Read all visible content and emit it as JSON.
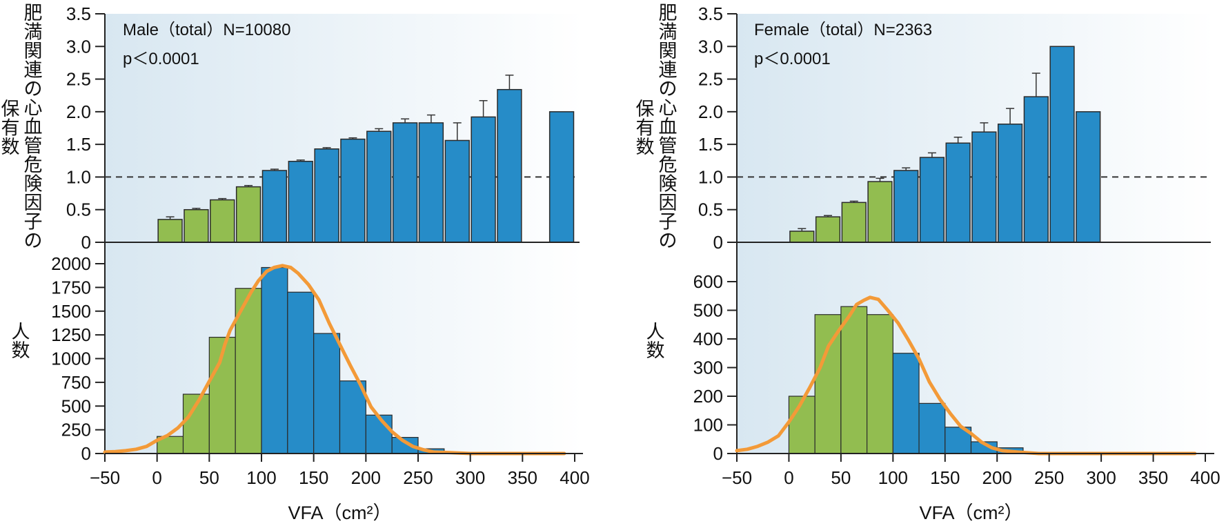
{
  "colors": {
    "green": "#92BD50",
    "blue": "#268CC8",
    "curve": "#F39A38",
    "bg_left": "#D8E7F1",
    "bg_right": "#FFFFFF",
    "axis": "#222222"
  },
  "chart_data": [
    {
      "id": "male",
      "type": "bar",
      "title": "Male（total）N=10080",
      "annotation": "p＜0.0001",
      "top_panel": {
        "type": "bar",
        "ylabel_main": "肥満関連の心血管危険因子の",
        "ylabel_sub": "保有数",
        "ylim": [
          0,
          3.5
        ],
        "yticks": [
          "0",
          "0.5",
          "1.0",
          "1.5",
          "2.0",
          "2.5",
          "3.0",
          "3.5"
        ],
        "reference_line": 1.0,
        "bin_width": 25,
        "bins": [
          {
            "x0": 0,
            "value": 0.35,
            "err": 0.04,
            "group": "green"
          },
          {
            "x0": 25,
            "value": 0.5,
            "err": 0.02,
            "group": "green"
          },
          {
            "x0": 50,
            "value": 0.65,
            "err": 0.02,
            "group": "green"
          },
          {
            "x0": 75,
            "value": 0.85,
            "err": 0.02,
            "group": "green"
          },
          {
            "x0": 100,
            "value": 1.1,
            "err": 0.02,
            "group": "blue"
          },
          {
            "x0": 125,
            "value": 1.24,
            "err": 0.02,
            "group": "blue"
          },
          {
            "x0": 150,
            "value": 1.43,
            "err": 0.02,
            "group": "blue"
          },
          {
            "x0": 175,
            "value": 1.58,
            "err": 0.02,
            "group": "blue"
          },
          {
            "x0": 200,
            "value": 1.7,
            "err": 0.04,
            "group": "blue"
          },
          {
            "x0": 225,
            "value": 1.83,
            "err": 0.06,
            "group": "blue"
          },
          {
            "x0": 250,
            "value": 1.83,
            "err": 0.12,
            "group": "blue"
          },
          {
            "x0": 275,
            "value": 1.56,
            "err": 0.27,
            "group": "blue"
          },
          {
            "x0": 300,
            "value": 1.92,
            "err": 0.25,
            "group": "blue"
          },
          {
            "x0": 325,
            "value": 2.34,
            "err": 0.22,
            "group": "blue"
          },
          {
            "x0": 375,
            "value": 2.0,
            "err": 0,
            "group": "blue"
          }
        ]
      },
      "bottom_panel": {
        "type": "histogram",
        "ylabel": "人数",
        "ylim": [
          0,
          2000
        ],
        "yticks": [
          "0",
          "250",
          "500",
          "750",
          "1000",
          "1250",
          "1500",
          "1750",
          "2000"
        ],
        "bin_width": 25,
        "bins": [
          {
            "x0": 0,
            "count": 180,
            "group": "green"
          },
          {
            "x0": 25,
            "count": 625,
            "group": "green"
          },
          {
            "x0": 50,
            "count": 1225,
            "group": "green"
          },
          {
            "x0": 75,
            "count": 1740,
            "group": "green"
          },
          {
            "x0": 100,
            "count": 1960,
            "group": "blue"
          },
          {
            "x0": 125,
            "count": 1700,
            "group": "blue"
          },
          {
            "x0": 150,
            "count": 1265,
            "group": "blue"
          },
          {
            "x0": 175,
            "count": 765,
            "group": "blue"
          },
          {
            "x0": 200,
            "count": 405,
            "group": "blue"
          },
          {
            "x0": 225,
            "count": 170,
            "group": "blue"
          },
          {
            "x0": 250,
            "count": 50,
            "group": "blue"
          },
          {
            "x0": 275,
            "count": 8,
            "group": "blue"
          }
        ],
        "curve": [
          [
            -50,
            15
          ],
          [
            -40,
            20
          ],
          [
            -30,
            30
          ],
          [
            -20,
            45
          ],
          [
            -10,
            75
          ],
          [
            0,
            140
          ],
          [
            10,
            190
          ],
          [
            20,
            270
          ],
          [
            30,
            385
          ],
          [
            40,
            560
          ],
          [
            50,
            760
          ],
          [
            60,
            960
          ],
          [
            65,
            1150
          ],
          [
            70,
            1300
          ],
          [
            80,
            1500
          ],
          [
            90,
            1700
          ],
          [
            97,
            1820
          ],
          [
            105,
            1920
          ],
          [
            112,
            1960
          ],
          [
            120,
            1980
          ],
          [
            128,
            1960
          ],
          [
            135,
            1900
          ],
          [
            145,
            1780
          ],
          [
            155,
            1620
          ],
          [
            165,
            1370
          ],
          [
            175,
            1150
          ],
          [
            185,
            930
          ],
          [
            195,
            720
          ],
          [
            205,
            490
          ],
          [
            215,
            350
          ],
          [
            225,
            230
          ],
          [
            235,
            140
          ],
          [
            245,
            75
          ],
          [
            255,
            40
          ],
          [
            265,
            15
          ],
          [
            280,
            10
          ],
          [
            300,
            0
          ],
          [
            340,
            0
          ],
          [
            390,
            0
          ]
        ]
      },
      "xlabel": "VFA（cm²）",
      "xlim": [
        -50,
        400
      ],
      "xticks": [
        "−50",
        "0",
        "50",
        "100",
        "150",
        "200",
        "250",
        "300",
        "350",
        "400"
      ]
    },
    {
      "id": "female",
      "type": "bar",
      "title": "Female（total）N=2363",
      "annotation": "p＜0.0001",
      "top_panel": {
        "type": "bar",
        "ylabel_main": "肥満関連の心血管危険因子の",
        "ylabel_sub": "保有数",
        "ylim": [
          0,
          3.5
        ],
        "yticks": [
          "0",
          "0.5",
          "1.0",
          "1.5",
          "2.0",
          "2.5",
          "3.0",
          "3.5"
        ],
        "reference_line": 1.0,
        "bin_width": 25,
        "bins": [
          {
            "x0": 0,
            "value": 0.17,
            "err": 0.04,
            "group": "green"
          },
          {
            "x0": 25,
            "value": 0.39,
            "err": 0.02,
            "group": "green"
          },
          {
            "x0": 50,
            "value": 0.61,
            "err": 0.02,
            "group": "green"
          },
          {
            "x0": 75,
            "value": 0.93,
            "err": 0.05,
            "group": "green"
          },
          {
            "x0": 100,
            "value": 1.1,
            "err": 0.04,
            "group": "blue"
          },
          {
            "x0": 125,
            "value": 1.3,
            "err": 0.07,
            "group": "blue"
          },
          {
            "x0": 150,
            "value": 1.52,
            "err": 0.09,
            "group": "blue"
          },
          {
            "x0": 175,
            "value": 1.69,
            "err": 0.14,
            "group": "blue"
          },
          {
            "x0": 200,
            "value": 1.81,
            "err": 0.24,
            "group": "blue"
          },
          {
            "x0": 225,
            "value": 2.23,
            "err": 0.36,
            "group": "blue"
          },
          {
            "x0": 250,
            "value": 3.0,
            "err": 0,
            "group": "blue"
          },
          {
            "x0": 275,
            "value": 2.0,
            "err": 0,
            "group": "blue"
          }
        ]
      },
      "bottom_panel": {
        "type": "histogram",
        "ylabel": "人数",
        "ylim": [
          0,
          600
        ],
        "yticks": [
          "0",
          "100",
          "200",
          "300",
          "400",
          "500",
          "600"
        ],
        "bin_width": 25,
        "bins": [
          {
            "x0": 0,
            "count": 200,
            "group": "green"
          },
          {
            "x0": 25,
            "count": 485,
            "group": "green"
          },
          {
            "x0": 50,
            "count": 513,
            "group": "green"
          },
          {
            "x0": 75,
            "count": 485,
            "group": "green"
          },
          {
            "x0": 100,
            "count": 350,
            "group": "blue"
          },
          {
            "x0": 125,
            "count": 175,
            "group": "blue"
          },
          {
            "x0": 150,
            "count": 92,
            "group": "blue"
          },
          {
            "x0": 175,
            "count": 41,
            "group": "blue"
          },
          {
            "x0": 200,
            "count": 20,
            "group": "blue"
          }
        ],
        "curve": [
          [
            -50,
            10
          ],
          [
            -40,
            15
          ],
          [
            -30,
            25
          ],
          [
            -20,
            40
          ],
          [
            -10,
            62
          ],
          [
            0,
            110
          ],
          [
            10,
            165
          ],
          [
            20,
            230
          ],
          [
            30,
            300
          ],
          [
            38,
            375
          ],
          [
            48,
            430
          ],
          [
            58,
            480
          ],
          [
            65,
            520
          ],
          [
            72,
            535
          ],
          [
            78,
            545
          ],
          [
            86,
            538
          ],
          [
            95,
            500
          ],
          [
            105,
            455
          ],
          [
            115,
            395
          ],
          [
            125,
            330
          ],
          [
            135,
            250
          ],
          [
            145,
            190
          ],
          [
            155,
            140
          ],
          [
            165,
            95
          ],
          [
            175,
            70
          ],
          [
            185,
            40
          ],
          [
            195,
            20
          ],
          [
            205,
            10
          ],
          [
            220,
            5
          ],
          [
            240,
            0
          ],
          [
            300,
            0
          ],
          [
            390,
            0
          ]
        ]
      },
      "xlabel": "VFA（cm²）",
      "xlim": [
        -50,
        400
      ],
      "xticks": [
        "−50",
        "0",
        "50",
        "100",
        "150",
        "200",
        "250",
        "300",
        "350",
        "400"
      ]
    }
  ]
}
